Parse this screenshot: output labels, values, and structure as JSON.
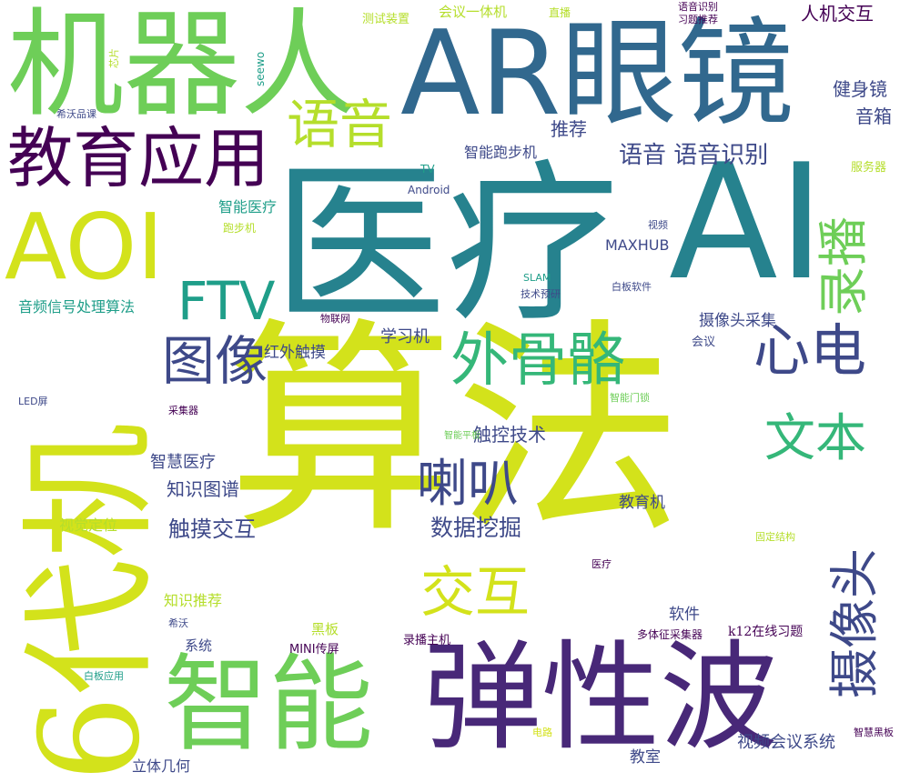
{
  "palette": {
    "lime": "#d3e21b",
    "yellowgreen": "#b5de2b",
    "green": "#6ece58",
    "seagreen": "#35b779",
    "teal": "#1f9e89",
    "tealblue": "#26828e",
    "blue": "#31688e",
    "indigo": "#3e4989",
    "purple": "#482878",
    "darkpurple": "#440154"
  },
  "words": [
    {
      "id": "suanfa",
      "text": "算法",
      "color": "#d3e21b"
    },
    {
      "id": "yiliao",
      "text": "医疗",
      "color": "#26828e"
    },
    {
      "id": "ai",
      "text": "AI",
      "color": "#26828e"
    },
    {
      "id": "ar-yanjing",
      "text": "AR眼镜",
      "color": "#31688e"
    },
    {
      "id": "jiqiren",
      "text": "机器人",
      "color": "#6ece58"
    },
    {
      "id": "6daiji",
      "text": "6代机",
      "color": "#d3e21b"
    },
    {
      "id": "tanxingbo",
      "text": "弹性波",
      "color": "#482878"
    },
    {
      "id": "zhineng",
      "text": "智能",
      "color": "#6ece58"
    },
    {
      "id": "aoi",
      "text": "AOI",
      "color": "#d3e21b"
    },
    {
      "id": "jiaoyu-yingyong",
      "text": "教育应用",
      "color": "#440154"
    },
    {
      "id": "waiguge",
      "text": "外骨骼",
      "color": "#35b779"
    },
    {
      "id": "ftv",
      "text": "FTV",
      "color": "#1f9e89"
    },
    {
      "id": "xindian",
      "text": "心电",
      "color": "#3e4989"
    },
    {
      "id": "luobo",
      "text": "录播",
      "color": "#6ece58"
    },
    {
      "id": "shexiangtou",
      "text": "摄像头",
      "color": "#3e4989"
    },
    {
      "id": "wenben",
      "text": "文本",
      "color": "#35b779"
    },
    {
      "id": "laba",
      "text": "喇叭",
      "color": "#3e4989"
    },
    {
      "id": "jiaohu",
      "text": "交互",
      "color": "#d3e21b"
    },
    {
      "id": "yuyin-big",
      "text": "语音",
      "color": "#b5de2b"
    },
    {
      "id": "tuxiang",
      "text": "图像",
      "color": "#3e4989"
    },
    {
      "id": "yuyin-yuyinshibie",
      "text": "语音 语音识别",
      "color": "#3e4989"
    },
    {
      "id": "shujuwajue",
      "text": "数据挖掘",
      "color": "#3e4989"
    },
    {
      "id": "chumo-jiaohu",
      "text": "触摸交互",
      "color": "#3e4989"
    },
    {
      "id": "chukong-jishu",
      "text": "触控技术",
      "color": "#3e4989"
    },
    {
      "id": "zhishi-tupu",
      "text": "知识图谱",
      "color": "#3e4989"
    },
    {
      "id": "zhihui-yiliao",
      "text": "智慧医疗",
      "color": "#3e4989"
    },
    {
      "id": "jianshenjing",
      "text": "健身镜",
      "color": "#3e4989"
    },
    {
      "id": "yinxiang",
      "text": "音箱",
      "color": "#3e4989"
    },
    {
      "id": "renji-jiaohu",
      "text": "人机交互",
      "color": "#440154"
    },
    {
      "id": "tuijian",
      "text": "推荐",
      "color": "#3e4989"
    },
    {
      "id": "zhineng-paobuji",
      "text": "智能跑步机",
      "color": "#3e4989"
    },
    {
      "id": "maxhub",
      "text": "MAXHUB",
      "color": "#3e4989"
    },
    {
      "id": "xuexiji",
      "text": "学习机",
      "color": "#3e4989"
    },
    {
      "id": "hongwai-chumo",
      "text": "红外触摸",
      "color": "#3e4989"
    },
    {
      "id": "shexiangtou-caiji",
      "text": "摄像头采集",
      "color": "#3e4989"
    },
    {
      "id": "jiaoyuji",
      "text": "教育机",
      "color": "#3e4989"
    },
    {
      "id": "ruanjian",
      "text": "软件",
      "color": "#3e4989"
    },
    {
      "id": "shipin-huiyi-xitong",
      "text": "视频会议系统",
      "color": "#3e4989"
    },
    {
      "id": "jiaoshi",
      "text": "教室",
      "color": "#3e4989"
    },
    {
      "id": "liti-jihe",
      "text": "立体几何",
      "color": "#3e4989"
    },
    {
      "id": "xitong",
      "text": "系统",
      "color": "#3e4989"
    },
    {
      "id": "heiban",
      "text": "黑板",
      "color": "#b5de2b"
    },
    {
      "id": "mini-chuanping",
      "text": "MINI传屏",
      "color": "#440154"
    },
    {
      "id": "luobo-zhuji",
      "text": "录播主机",
      "color": "#440154"
    },
    {
      "id": "k12",
      "text": "k12在线习题",
      "color": "#440154"
    },
    {
      "id": "duotizheng",
      "text": "多体征采集器",
      "color": "#440154"
    },
    {
      "id": "zhishi-tuijian",
      "text": "知识推荐",
      "color": "#b5de2b"
    },
    {
      "id": "shijue-dingwei",
      "text": "视觉定位",
      "color": "#b5de2b"
    },
    {
      "id": "yinpin-xinhao",
      "text": "音频信号处理算法",
      "color": "#1f9e89"
    },
    {
      "id": "zhineng-yiliao",
      "text": "智能医疗",
      "color": "#1f9e89"
    },
    {
      "id": "paobuji",
      "text": "跑步机",
      "color": "#b5de2b"
    },
    {
      "id": "huiyi-yitiji",
      "text": "会议一体机",
      "color": "#b5de2b"
    },
    {
      "id": "ceshi-zhuangzhi",
      "text": "测试装置",
      "color": "#b5de2b"
    },
    {
      "id": "zhibo",
      "text": "直播",
      "color": "#b5de2b"
    },
    {
      "id": "yuyin-shibie-small",
      "text": "语音识别",
      "color": "#440154"
    },
    {
      "id": "xiti-tuijian",
      "text": "习题推荐",
      "color": "#440154"
    },
    {
      "id": "fuwuqi",
      "text": "服务器",
      "color": "#b5de2b"
    },
    {
      "id": "tv",
      "text": "TV",
      "color": "#1f9e89"
    },
    {
      "id": "android",
      "text": "Android",
      "color": "#3e4989"
    },
    {
      "id": "shipin",
      "text": "视频",
      "color": "#3e4989"
    },
    {
      "id": "slam",
      "text": "SLAM",
      "color": "#1f9e89"
    },
    {
      "id": "jishu-yuyan",
      "text": "技术预研",
      "color": "#3e4989"
    },
    {
      "id": "baiban-ruanjian",
      "text": "白板软件",
      "color": "#3e4989"
    },
    {
      "id": "wulianwang",
      "text": "物联网",
      "color": "#440154"
    },
    {
      "id": "huiyi",
      "text": "会议",
      "color": "#3e4989"
    },
    {
      "id": "zhineng-mensuo",
      "text": "智能门锁",
      "color": "#6ece58"
    },
    {
      "id": "zhineng-pingban",
      "text": "智能平板",
      "color": "#6ece58"
    },
    {
      "id": "caijiqi",
      "text": "采集器",
      "color": "#440154"
    },
    {
      "id": "led-ping",
      "text": "LED屏",
      "color": "#3e4989"
    },
    {
      "id": "guding-jiegou",
      "text": "固定结构",
      "color": "#b5de2b"
    },
    {
      "id": "yiliao-small",
      "text": "医疗",
      "color": "#440154"
    },
    {
      "id": "xiwo",
      "text": "希沃",
      "color": "#3e4989"
    },
    {
      "id": "baiban-yingyong",
      "text": "白板应用",
      "color": "#1f9e89"
    },
    {
      "id": "dianlu",
      "text": "电路",
      "color": "#d3e21b"
    },
    {
      "id": "zhihui-heiban",
      "text": "智慧黑板",
      "color": "#440154"
    },
    {
      "id": "xinpian",
      "text": "芯片",
      "color": "#b5de2b"
    },
    {
      "id": "seewo",
      "text": "seewo",
      "color": "#1f9e89"
    },
    {
      "id": "xiwo-pinke",
      "text": "希沃品课",
      "color": "#3e4989"
    }
  ]
}
